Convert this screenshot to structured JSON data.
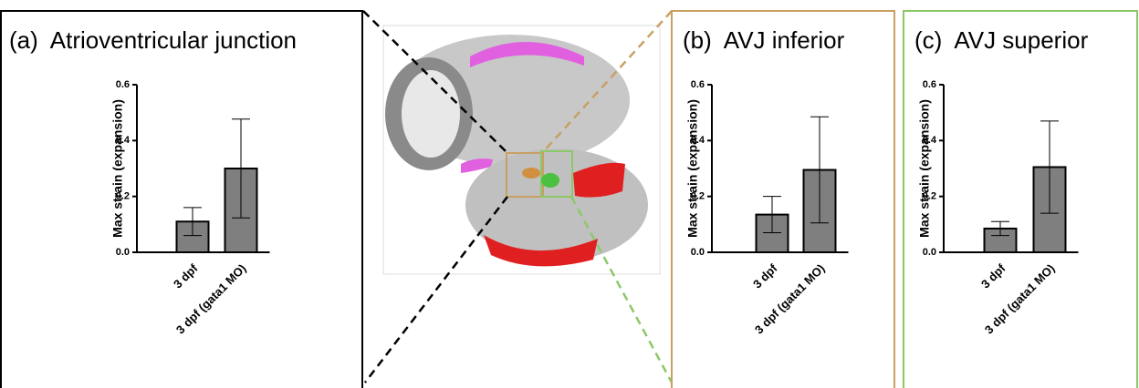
{
  "chart_data": [
    {
      "type": "bar",
      "title": "(a)  Atrioventricular junction",
      "y_label": "Max strain (expansion)",
      "categories": [
        "3 dpf",
        "3 dpf (gata1 MO)"
      ],
      "values": [
        0.11,
        0.3
      ],
      "errors": [
        0.05,
        0.177
      ],
      "ylim": [
        0,
        0.6
      ],
      "yticks": [
        {
          "value": 0,
          "label": "0.0"
        },
        0.2,
        0.4,
        0.6
      ],
      "color": "#7f7f7f",
      "frame_color": "#000000"
    },
    {
      "type": "bar",
      "title": "(b)  AVJ inferior",
      "y_label": "Max strain (expansion)",
      "categories": [
        "3 dpf",
        "3 dpf (gata1 MO)"
      ],
      "values": [
        0.135,
        0.295
      ],
      "errors": [
        0.065,
        0.19
      ],
      "ylim": [
        0,
        0.6
      ],
      "yticks": [
        {
          "value": 0,
          "label": "0.0"
        },
        0.2,
        0.4,
        0.6
      ],
      "color": "#7f7f7f",
      "frame_color": "#c8a063"
    },
    {
      "type": "bar",
      "title": "(c)  AVJ superior",
      "y_label": "Max strain (expansion)",
      "categories": [
        "3 dpf",
        "3 dpf (gata1 MO)"
      ],
      "values": [
        0.085,
        0.305
      ],
      "errors": [
        0.025,
        0.165
      ],
      "ylim": [
        0,
        0.6
      ],
      "yticks": [
        {
          "value": 0,
          "label": "0.0"
        },
        0.2,
        0.4,
        0.6
      ],
      "color": "#7f7f7f",
      "frame_color": "#8cc868"
    }
  ]
}
